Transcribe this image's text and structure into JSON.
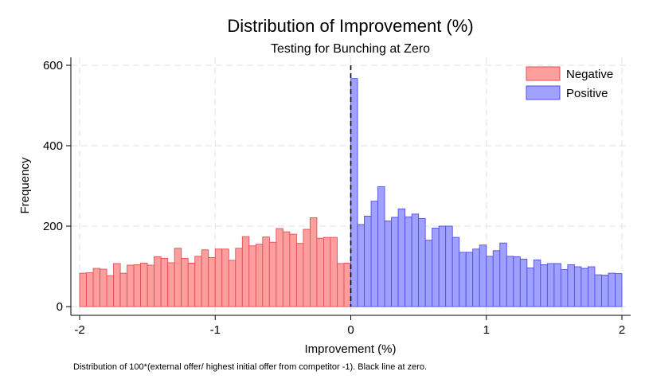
{
  "chart_data": {
    "type": "bar",
    "title": "Distribution of Improvement (%)",
    "subtitle": "Testing for Bunching at Zero",
    "xlabel": "Improvement (%)",
    "ylabel": "Frequency",
    "note": "Distribution of 100*(external offer/ highest initial offer from competitor -1). Black line at zero.",
    "xlim": [
      -2,
      2
    ],
    "ylim": [
      0,
      600
    ],
    "xticks": [
      -2,
      -1,
      0,
      1,
      2
    ],
    "xtick_labels": [
      "-2",
      "-1",
      "0",
      "1",
      "2"
    ],
    "yticks": [
      0,
      200,
      400,
      600
    ],
    "ytick_labels": [
      "0",
      "200",
      "400",
      "600"
    ],
    "bin_width": 0.05,
    "grid": true,
    "legend_position": "top-right",
    "reference_line": {
      "x": 0,
      "style": "dashed",
      "color": "#000000"
    },
    "series": [
      {
        "name": "Negative",
        "color": "#ff9e9e",
        "edge_color": "#e05050",
        "bin_starts": [
          -2.0,
          -1.95,
          -1.9,
          -1.85,
          -1.8,
          -1.75,
          -1.7,
          -1.65,
          -1.6,
          -1.55,
          -1.5,
          -1.45,
          -1.4,
          -1.35,
          -1.3,
          -1.25,
          -1.2,
          -1.15,
          -1.1,
          -1.05,
          -1.0,
          -0.95,
          -0.9,
          -0.85,
          -0.8,
          -0.75,
          -0.7,
          -0.65,
          -0.6,
          -0.55,
          -0.5,
          -0.45,
          -0.4,
          -0.35,
          -0.3,
          -0.25,
          -0.2,
          -0.15,
          -0.1,
          -0.05
        ],
        "values": [
          83,
          84,
          95,
          93,
          77,
          107,
          83,
          103,
          104,
          108,
          103,
          124,
          120,
          109,
          145,
          120,
          108,
          125,
          141,
          122,
          143,
          143,
          115,
          145,
          174,
          151,
          155,
          173,
          160,
          194,
          186,
          180,
          157,
          192,
          221,
          170,
          172,
          172,
          107,
          108
        ]
      },
      {
        "name": "Positive",
        "color": "#a0a0ff",
        "edge_color": "#5050e0",
        "bin_starts": [
          0.0,
          0.05,
          0.1,
          0.15,
          0.2,
          0.25,
          0.3,
          0.35,
          0.4,
          0.45,
          0.5,
          0.55,
          0.6,
          0.65,
          0.7,
          0.75,
          0.8,
          0.85,
          0.9,
          0.95,
          1.0,
          1.05,
          1.1,
          1.15,
          1.2,
          1.25,
          1.3,
          1.35,
          1.4,
          1.45,
          1.5,
          1.55,
          1.6,
          1.65,
          1.7,
          1.75,
          1.8,
          1.85,
          1.9,
          1.95
        ],
        "values": [
          567,
          204,
          225,
          262,
          298,
          213,
          222,
          243,
          223,
          230,
          219,
          165,
          195,
          200,
          200,
          172,
          135,
          135,
          143,
          153,
          125,
          139,
          158,
          125,
          124,
          118,
          96,
          116,
          104,
          107,
          107,
          92,
          104,
          99,
          95,
          99,
          79,
          78,
          83,
          82
        ]
      }
    ]
  }
}
